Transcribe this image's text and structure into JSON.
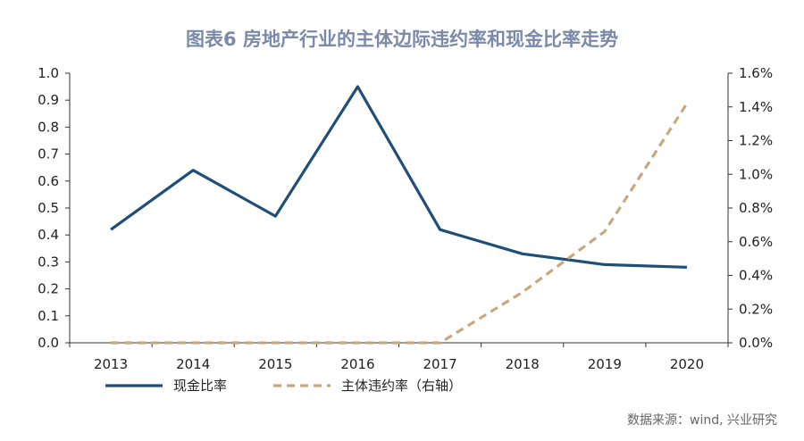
{
  "title": "图表6  房地产行业的主体边际违约率和现金比率走势",
  "source": "数据来源：wind, 兴业研究",
  "chart_data": {
    "type": "line",
    "categories": [
      "2013",
      "2014",
      "2015",
      "2016",
      "2017",
      "2018",
      "2019",
      "2020"
    ],
    "series": [
      {
        "name": "现金比率",
        "axis": "left",
        "color": "#1f4e79",
        "style": "solid",
        "values": [
          0.42,
          0.64,
          0.47,
          0.95,
          0.42,
          0.33,
          0.29,
          0.28
        ]
      },
      {
        "name": "主体违约率（右轴）",
        "axis": "right",
        "color": "#c8a97e",
        "style": "dashed",
        "values": [
          0.0,
          0.0,
          0.0,
          0.0,
          0.0,
          0.3,
          0.66,
          1.42
        ]
      }
    ],
    "ylim_left": [
      0,
      1.0
    ],
    "ytick_labels_left": [
      "0.0",
      "0.1",
      "0.2",
      "0.3",
      "0.4",
      "0.5",
      "0.6",
      "0.7",
      "0.8",
      "0.9",
      "1.0"
    ],
    "ylim_right": [
      0,
      1.6
    ],
    "ytick_labels_right": [
      "0.0%",
      "0.2%",
      "0.4%",
      "0.6%",
      "0.8%",
      "1.0%",
      "1.2%",
      "1.4%",
      "1.6%"
    ],
    "grid": false,
    "legend_position": "bottom-left"
  }
}
